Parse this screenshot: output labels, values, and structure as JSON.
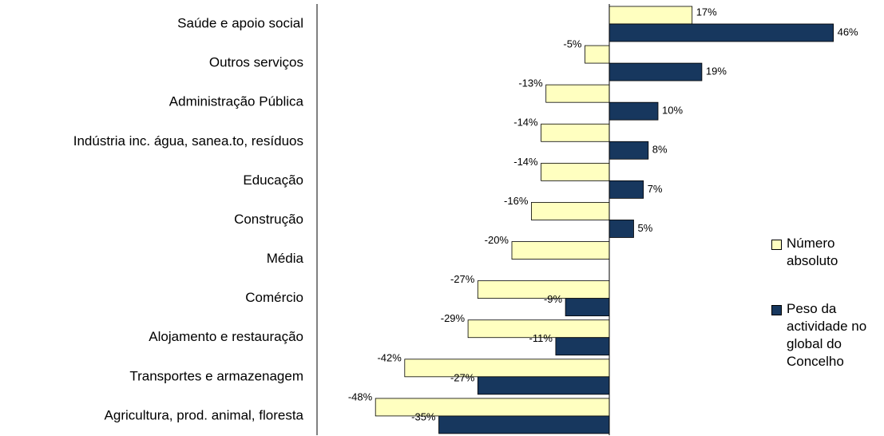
{
  "chart_data": {
    "type": "bar",
    "orientation": "horizontal",
    "categories": [
      "Saúde e apoio  social",
      "Outros serviços",
      "Administração Pública",
      "Indústria inc. água, sanea.to, resíduos",
      "Educação",
      "Construção",
      "Média",
      "Comércio",
      "Alojamento e restauração",
      "Transportes e armazenagem",
      "Agricultura, prod. animal, floresta"
    ],
    "series": [
      {
        "name": "Número absoluto",
        "color": "#ffffc0",
        "values": [
          17,
          -5,
          -13,
          -14,
          -14,
          -16,
          -20,
          -27,
          -29,
          -42,
          -48
        ],
        "value_labels": [
          "17%",
          "-5%",
          "-13%",
          "-14%",
          "-14%",
          "-16%",
          "-20%",
          "-27%",
          "-29%",
          "-42%",
          "-48%"
        ]
      },
      {
        "name": "Peso da actividade no global do Concelho",
        "color": "#17375e",
        "values": [
          46,
          19,
          10,
          8,
          7,
          5,
          null,
          -9,
          -11,
          -27,
          -35
        ],
        "value_labels": [
          "46%",
          "19%",
          "10%",
          "8%",
          "7%",
          "5%",
          null,
          "-9%",
          "-11%",
          "-27%",
          "-35%"
        ]
      }
    ],
    "xlim": [
      -60,
      50
    ],
    "legend": "right"
  }
}
